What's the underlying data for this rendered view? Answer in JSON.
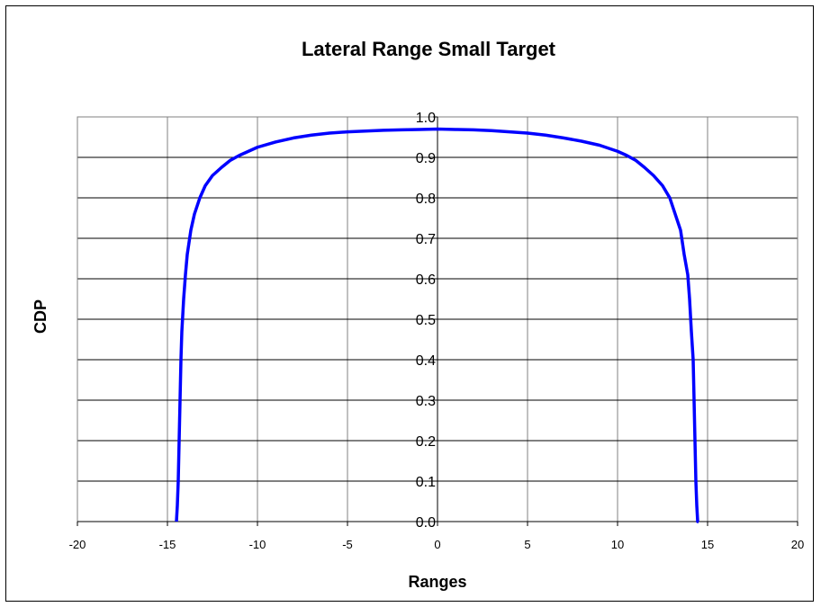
{
  "chart_data": {
    "type": "line",
    "title": "Lateral Range Small Target",
    "xlabel": "Ranges",
    "ylabel": "CDP",
    "xlim": [
      -20,
      20
    ],
    "ylim": [
      0.0,
      1.0
    ],
    "x_ticks": [
      "-20",
      "-15",
      "-10",
      "-5",
      "0",
      "5",
      "10",
      "15",
      "20"
    ],
    "y_ticks": [
      "0.0",
      "0.1",
      "0.2",
      "0.3",
      "0.4",
      "0.5",
      "0.6",
      "0.7",
      "0.8",
      "0.9",
      "1.0"
    ],
    "grid": true,
    "legend": false,
    "series_color": "#0000ff",
    "series": [
      {
        "x": [
          -14.5,
          -14.45,
          -14.4,
          -14.35,
          -14.3,
          -14.25,
          -14.2,
          -14.1,
          -14.0,
          -13.9,
          -13.7,
          -13.5,
          -13.2,
          -12.9,
          -12.5,
          -12.0,
          -11.5,
          -11.0,
          -10.5,
          -10.0,
          -9.0,
          -8.0,
          -7.0,
          -6.0,
          -5.0,
          -4.0,
          -3.0,
          -2.0,
          -1.0,
          0.0,
          1.0,
          2.0,
          3.0,
          4.0,
          5.0,
          6.0,
          7.0,
          8.0,
          9.0,
          10.0,
          10.5,
          11.0,
          11.5,
          12.0,
          12.5,
          12.9,
          13.2,
          13.5,
          13.7,
          13.9,
          14.0,
          14.1,
          14.2,
          14.25,
          14.3,
          14.35,
          14.4,
          14.45,
          14.5
        ],
        "y": [
          0.0,
          0.04,
          0.1,
          0.2,
          0.3,
          0.4,
          0.47,
          0.55,
          0.61,
          0.66,
          0.72,
          0.76,
          0.8,
          0.83,
          0.855,
          0.875,
          0.893,
          0.905,
          0.915,
          0.925,
          0.938,
          0.948,
          0.955,
          0.96,
          0.963,
          0.965,
          0.967,
          0.968,
          0.969,
          0.97,
          0.969,
          0.968,
          0.966,
          0.963,
          0.96,
          0.955,
          0.948,
          0.94,
          0.93,
          0.915,
          0.905,
          0.893,
          0.875,
          0.855,
          0.83,
          0.8,
          0.76,
          0.72,
          0.66,
          0.61,
          0.55,
          0.47,
          0.4,
          0.3,
          0.2,
          0.1,
          0.04,
          0.0,
          0.0
        ]
      }
    ]
  }
}
